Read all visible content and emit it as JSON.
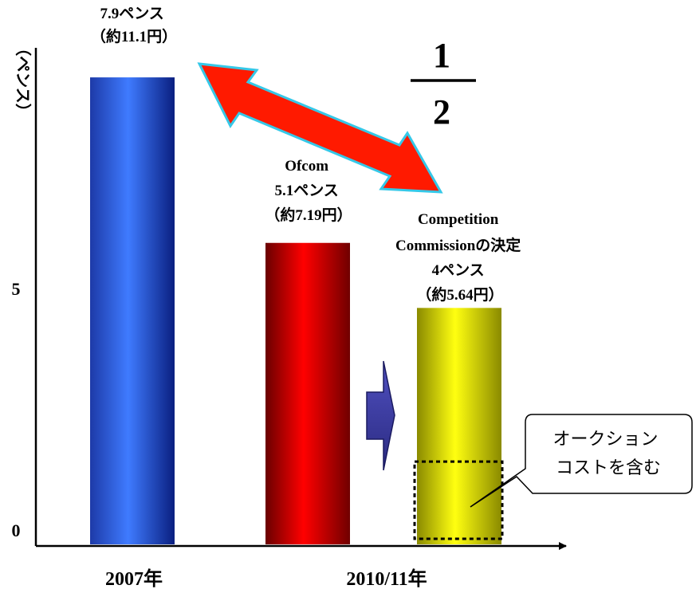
{
  "chart_data": {
    "type": "bar",
    "ylabel": "（ペンス）",
    "ylim": [
      0,
      8.4
    ],
    "y_ticks": [
      {
        "value": 0,
        "label": "0"
      },
      {
        "value": 5,
        "label": "5"
      }
    ],
    "x_labels": [
      "2007年",
      "2010/11年"
    ],
    "bars": [
      {
        "value": 7.9,
        "color": "blue",
        "label_lines": [
          "7.9ペンス",
          "（約11.1円）"
        ]
      },
      {
        "value": 5.1,
        "color": "red",
        "label_lines": [
          "Ofcom",
          "5.1ペンス",
          "（約7.19円）"
        ]
      },
      {
        "value": 4,
        "color": "yellow",
        "label_lines": [
          "Competition",
          "Commissionの決定",
          "4ペンス",
          "（約5.64円）"
        ]
      }
    ],
    "fraction": {
      "numerator": "1",
      "denominator": "2"
    },
    "callout_lines": [
      "オークション",
      "コストを含む"
    ],
    "auction_cost_value": 1.4,
    "colors": {
      "blue": "#2f5ee8",
      "red": "#e00000",
      "yellow": "#eeee00",
      "arrow": "#ff1a00",
      "arrow_outline": "#35c8e8",
      "small_arrow": "#3a3aa0"
    }
  }
}
